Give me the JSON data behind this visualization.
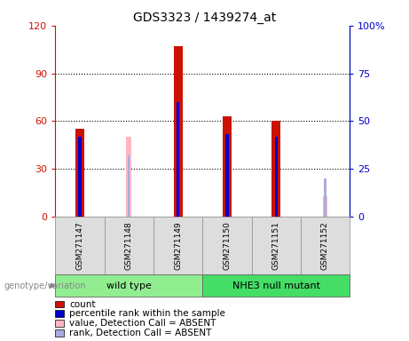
{
  "title": "GDS3323 / 1439274_at",
  "samples": [
    "GSM271147",
    "GSM271148",
    "GSM271149",
    "GSM271150",
    "GSM271151",
    "GSM271152"
  ],
  "groups": [
    {
      "label": "wild type",
      "color": "#90EE90",
      "samples": [
        0,
        1,
        2
      ]
    },
    {
      "label": "NHE3 null mutant",
      "color": "#44DD66",
      "samples": [
        3,
        4,
        5
      ]
    }
  ],
  "count_values": [
    55,
    null,
    107,
    63,
    60,
    null
  ],
  "percentile_values": [
    42,
    null,
    60,
    43,
    42,
    null
  ],
  "absent_value_values": [
    null,
    50,
    null,
    null,
    null,
    13
  ],
  "absent_rank_values": [
    null,
    32,
    null,
    null,
    null,
    20
  ],
  "ylim_left": [
    0,
    120
  ],
  "ylim_right": [
    0,
    100
  ],
  "yticks_left": [
    0,
    30,
    60,
    90,
    120
  ],
  "yticks_right": [
    0,
    25,
    50,
    75,
    100
  ],
  "ytick_labels_left": [
    "0",
    "30",
    "60",
    "90",
    "120"
  ],
  "ytick_labels_right": [
    "0",
    "25",
    "50",
    "75",
    "100%"
  ],
  "color_count": "#CC1100",
  "color_percentile": "#0000CC",
  "color_absent_value": "#FFB6C1",
  "color_absent_rank": "#AAAADD",
  "bar_width": 0.18,
  "absent_bar_width": 0.1,
  "percentile_bar_width": 0.06,
  "absent_rank_bar_width": 0.04,
  "left_axis_color": "#CC1100",
  "right_axis_color": "#0000CC",
  "genotype_label": "genotype/variation",
  "legend_items": [
    {
      "color": "#CC1100",
      "label": "count"
    },
    {
      "color": "#0000CC",
      "label": "percentile rank within the sample"
    },
    {
      "color": "#FFB6C1",
      "label": "value, Detection Call = ABSENT"
    },
    {
      "color": "#AAAADD",
      "label": "rank, Detection Call = ABSENT"
    }
  ],
  "group1_color": "#90EE90",
  "group2_color": "#44DD66",
  "sample_box_color": "#DDDDDD",
  "sample_box_border": "#999999"
}
